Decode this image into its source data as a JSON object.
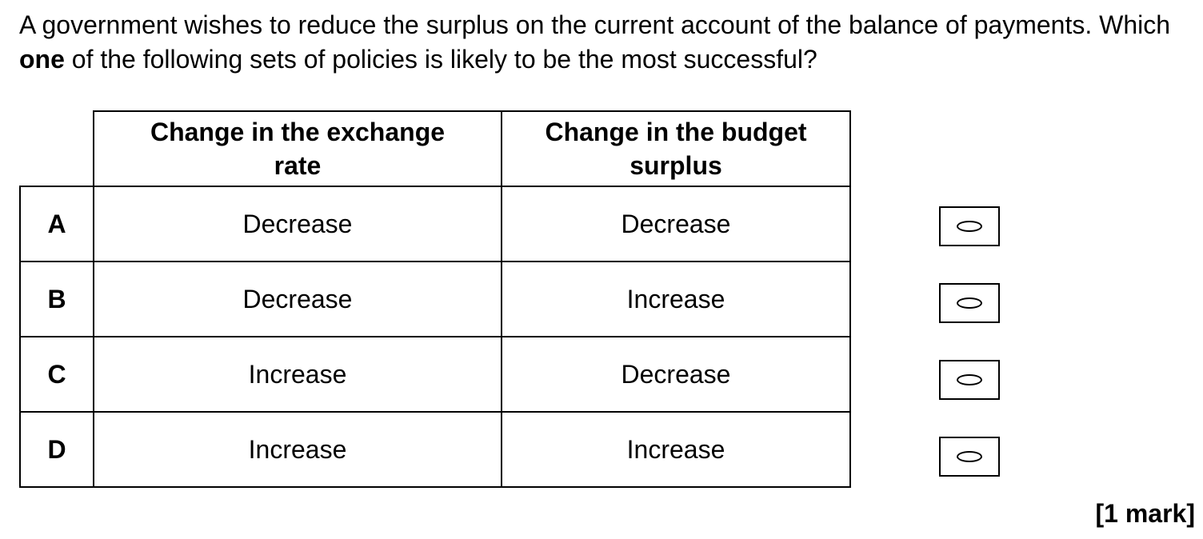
{
  "question": {
    "text_before": "A government wishes to reduce the surplus on the current account of the balance of payments.  Which ",
    "emphasis": "one",
    "text_after": " of the following sets of policies is likely to be the most successful?"
  },
  "table": {
    "headers": [
      "Change in the exchange rate",
      "Change in the budget surplus"
    ],
    "rows": [
      {
        "letter": "A",
        "exchange_rate": "Decrease",
        "budget_surplus": "Decrease"
      },
      {
        "letter": "B",
        "exchange_rate": "Decrease",
        "budget_surplus": "Increase"
      },
      {
        "letter": "C",
        "exchange_rate": "Increase",
        "budget_surplus": "Decrease"
      },
      {
        "letter": "D",
        "exchange_rate": "Increase",
        "budget_surplus": "Increase"
      }
    ]
  },
  "answer_options": [
    {
      "letter": "A",
      "icon": "oval-icon",
      "selected": false
    },
    {
      "letter": "B",
      "icon": "oval-icon",
      "selected": false
    },
    {
      "letter": "C",
      "icon": "oval-icon",
      "selected": false
    },
    {
      "letter": "D",
      "icon": "oval-icon",
      "selected": false
    }
  ],
  "marks": "[1 mark]"
}
